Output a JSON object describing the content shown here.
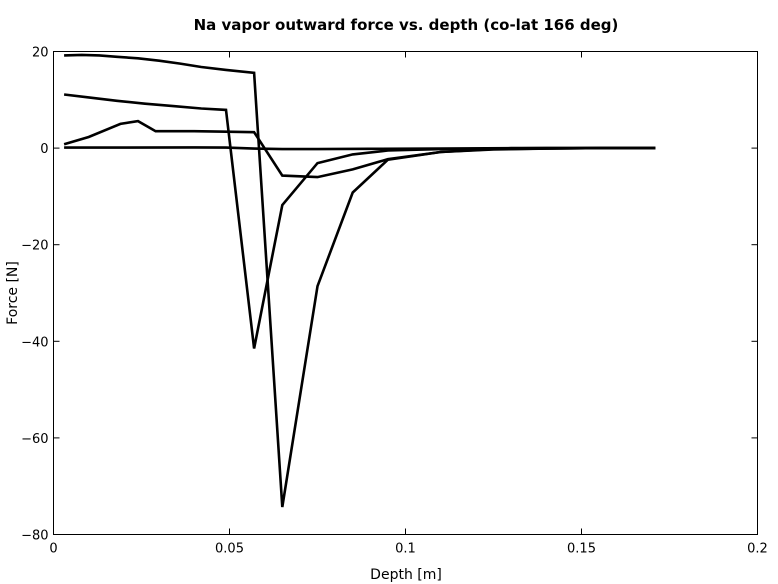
{
  "chart_data": {
    "type": "line",
    "title": "Na vapor outward force vs. depth (co-lat 166 deg)",
    "xlabel": "Depth [m]",
    "ylabel": "Force [N]",
    "xlim": [
      0,
      0.2
    ],
    "ylim": [
      -80,
      20
    ],
    "xticks": [
      0,
      0.05,
      0.1,
      0.15,
      0.2
    ],
    "xtick_labels": [
      "0",
      "0.05",
      "0.1",
      "0.15",
      "0.2"
    ],
    "yticks": [
      -80,
      -60,
      -40,
      -20,
      0,
      20
    ],
    "ytick_labels": [
      "−80",
      "−60",
      "−40",
      "−20",
      "0",
      "20"
    ],
    "grid": false,
    "series_color": "#000000",
    "series": [
      {
        "x": [
          0.003,
          0.008,
          0.013,
          0.018,
          0.024,
          0.03,
          0.036,
          0.042,
          0.049,
          0.057,
          0.065,
          0.075,
          0.085,
          0.095,
          0.11,
          0.125,
          0.14,
          0.155,
          0.171
        ],
        "y": [
          19.2,
          19.3,
          19.2,
          18.9,
          18.6,
          18.1,
          17.5,
          16.8,
          16.2,
          15.6,
          -74.3,
          -28.6,
          -9.2,
          -2.4,
          -0.8,
          -0.3,
          -0.1,
          0,
          0
        ]
      },
      {
        "x": [
          0.003,
          0.01,
          0.018,
          0.026,
          0.034,
          0.042,
          0.049,
          0.057,
          0.065,
          0.075,
          0.085,
          0.095,
          0.11,
          0.125,
          0.14,
          0.155,
          0.171
        ],
        "y": [
          11.1,
          10.5,
          9.8,
          9.2,
          8.7,
          8.2,
          7.9,
          -41.5,
          -11.8,
          -3.1,
          -1.3,
          -0.5,
          -0.2,
          -0.1,
          0,
          0,
          0
        ],
        "note_hidden": ""
      },
      {
        "x": [
          0.003,
          0.01,
          0.019,
          0.024,
          0.029,
          0.04,
          0.049,
          0.057,
          0.065,
          0.075,
          0.085,
          0.095,
          0.11,
          0.125,
          0.14,
          0.155,
          0.171
        ],
        "y": [
          0.8,
          2.3,
          5.0,
          5.6,
          3.5,
          3.5,
          3.4,
          3.3,
          -5.7,
          -6.0,
          -4.4,
          -2.3,
          -0.8,
          -0.2,
          -0.1,
          0,
          0
        ]
      },
      {
        "x": [
          0.003,
          0.02,
          0.04,
          0.049,
          0.057,
          0.065,
          0.075,
          0.09,
          0.11,
          0.13,
          0.15,
          0.171
        ],
        "y": [
          0.1,
          0.1,
          0.15,
          0.1,
          -0.1,
          -0.2,
          -0.2,
          -0.15,
          -0.1,
          0,
          0,
          0
        ]
      }
    ]
  }
}
